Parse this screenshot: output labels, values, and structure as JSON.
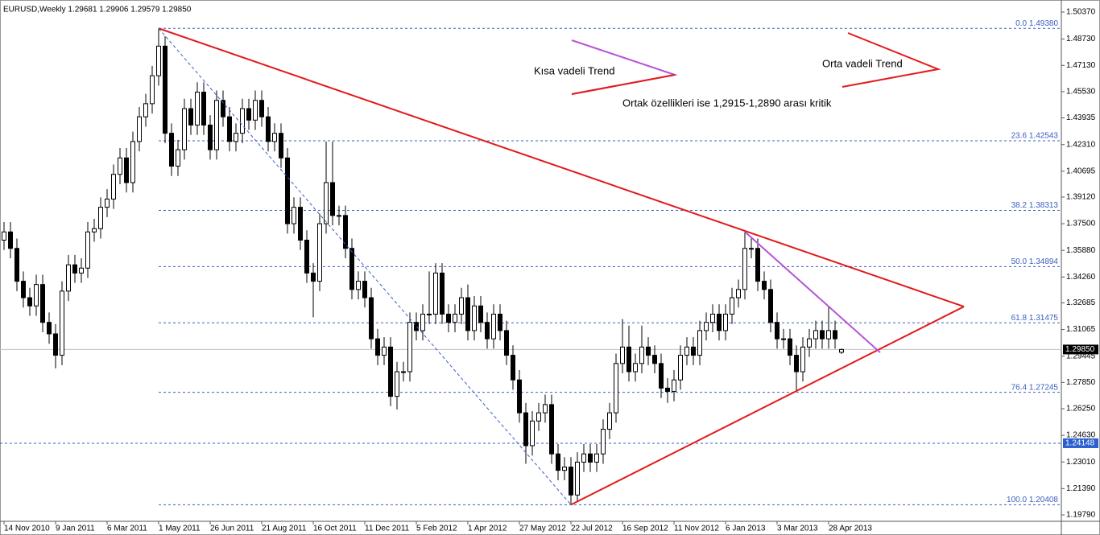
{
  "chart_data": {
    "type": "candlestick",
    "title": "EURUSD,Weekly  1.29681 1.29906 1.29579 1.29850",
    "categories": [
      "14 Nov 2010",
      null,
      null,
      null,
      null,
      null,
      null,
      null,
      "9 Jan 2011",
      null,
      null,
      null,
      null,
      null,
      null,
      null,
      "6 Mar 2011",
      null,
      null,
      null,
      null,
      null,
      null,
      null,
      "1 May 2011",
      null,
      null,
      null,
      null,
      null,
      null,
      null,
      "26 Jun 2011",
      null,
      null,
      null,
      null,
      null,
      null,
      null,
      "21 Aug 2011",
      null,
      null,
      null,
      null,
      null,
      null,
      null,
      "16 Oct 2011",
      null,
      null,
      null,
      null,
      null,
      null,
      null,
      "11 Dec 2011",
      null,
      null,
      null,
      null,
      null,
      null,
      null,
      "5 Feb 2012",
      null,
      null,
      null,
      null,
      null,
      null,
      null,
      "1 Apr 2012",
      null,
      null,
      null,
      null,
      null,
      null,
      null,
      "27 May 2012",
      null,
      null,
      null,
      null,
      null,
      null,
      null,
      "22 Jul 2012",
      null,
      null,
      null,
      null,
      null,
      null,
      null,
      "16 Sep 2012",
      null,
      null,
      null,
      null,
      null,
      null,
      null,
      "11 Nov 2012",
      null,
      null,
      null,
      null,
      null,
      null,
      null,
      "6 Jan 2013",
      null,
      null,
      null,
      null,
      null,
      null,
      null,
      "3 Mar 2013",
      null,
      null,
      null,
      null,
      null,
      null,
      null,
      "28 Apr 2013",
      null,
      null
    ],
    "open": [
      1.365,
      1.37,
      1.36,
      1.34,
      1.33,
      1.325,
      1.338,
      1.315,
      1.308,
      1.295,
      1.334,
      1.35,
      1.345,
      1.348,
      1.37,
      1.372,
      1.385,
      1.39,
      1.405,
      1.415,
      1.4,
      1.425,
      1.44,
      1.448,
      1.465,
      1.483,
      1.43,
      1.41,
      1.42,
      1.445,
      1.435,
      1.455,
      1.435,
      1.42,
      1.45,
      1.44,
      1.425,
      1.43,
      1.445,
      1.438,
      1.45,
      1.44,
      1.425,
      1.43,
      1.415,
      1.375,
      1.385,
      1.365,
      1.345,
      1.34,
      1.375,
      1.4,
      1.38,
      1.38,
      1.36,
      1.335,
      1.34,
      1.33,
      1.305,
      1.295,
      1.3,
      1.27,
      1.285,
      1.285,
      1.315,
      1.31,
      1.32,
      1.32,
      1.345,
      1.32,
      1.315,
      1.32,
      1.33,
      1.31,
      1.325,
      1.315,
      1.305,
      1.32,
      1.31,
      1.295,
      1.28,
      1.26,
      1.24,
      1.255,
      1.26,
      1.265,
      1.235,
      1.225,
      1.227,
      1.21,
      1.23,
      1.235,
      1.23,
      1.235,
      1.25,
      1.26,
      1.29,
      1.3,
      1.285,
      1.29,
      1.3,
      1.295,
      1.29,
      1.275,
      1.273,
      1.28,
      1.295,
      1.3,
      1.295,
      1.31,
      1.315,
      1.32,
      1.31,
      1.32,
      1.33,
      1.335,
      1.36,
      1.36,
      1.34,
      1.335,
      1.315,
      1.305,
      1.305,
      1.295,
      1.285,
      1.3,
      1.305,
      1.31,
      1.305,
      1.31,
      1.29681
    ],
    "high": [
      1.376,
      1.376,
      1.366,
      1.346,
      1.336,
      1.344,
      1.344,
      1.321,
      1.314,
      1.34,
      1.356,
      1.356,
      1.354,
      1.376,
      1.378,
      1.391,
      1.396,
      1.411,
      1.421,
      1.421,
      1.431,
      1.446,
      1.454,
      1.471,
      1.4938,
      1.489,
      1.436,
      1.426,
      1.451,
      1.451,
      1.461,
      1.461,
      1.441,
      1.456,
      1.456,
      1.446,
      1.436,
      1.451,
      1.451,
      1.456,
      1.456,
      1.446,
      1.436,
      1.436,
      1.421,
      1.391,
      1.391,
      1.371,
      1.351,
      1.381,
      1.425,
      1.425,
      1.386,
      1.386,
      1.366,
      1.346,
      1.346,
      1.336,
      1.311,
      1.306,
      1.306,
      1.291,
      1.291,
      1.321,
      1.321,
      1.326,
      1.346,
      1.351,
      1.351,
      1.326,
      1.326,
      1.336,
      1.338,
      1.331,
      1.331,
      1.321,
      1.326,
      1.326,
      1.316,
      1.301,
      1.286,
      1.266,
      1.261,
      1.266,
      1.271,
      1.271,
      1.241,
      1.233,
      1.233,
      1.236,
      1.241,
      1.241,
      1.241,
      1.256,
      1.266,
      1.296,
      1.317,
      1.313,
      1.296,
      1.313,
      1.306,
      1.301,
      1.296,
      1.281,
      1.286,
      1.301,
      1.306,
      1.306,
      1.316,
      1.321,
      1.326,
      1.326,
      1.326,
      1.336,
      1.341,
      1.371,
      1.366,
      1.366,
      1.346,
      1.341,
      1.321,
      1.311,
      1.311,
      1.301,
      1.306,
      1.311,
      1.316,
      1.316,
      1.325,
      1.316,
      1.29906
    ],
    "low": [
      1.359,
      1.354,
      1.334,
      1.324,
      1.319,
      1.319,
      1.309,
      1.302,
      1.287,
      1.289,
      1.328,
      1.339,
      1.339,
      1.342,
      1.364,
      1.366,
      1.379,
      1.384,
      1.399,
      1.394,
      1.394,
      1.419,
      1.434,
      1.442,
      1.459,
      1.424,
      1.404,
      1.404,
      1.414,
      1.429,
      1.429,
      1.429,
      1.414,
      1.414,
      1.434,
      1.419,
      1.419,
      1.424,
      1.432,
      1.432,
      1.434,
      1.419,
      1.419,
      1.409,
      1.369,
      1.369,
      1.359,
      1.339,
      1.318,
      1.334,
      1.369,
      1.374,
      1.374,
      1.354,
      1.329,
      1.329,
      1.324,
      1.299,
      1.289,
      1.289,
      1.264,
      1.262,
      1.279,
      1.279,
      1.304,
      1.304,
      1.314,
      1.314,
      1.314,
      1.309,
      1.309,
      1.314,
      1.304,
      1.304,
      1.309,
      1.299,
      1.299,
      1.304,
      1.289,
      1.274,
      1.254,
      1.229,
      1.234,
      1.249,
      1.254,
      1.229,
      1.219,
      1.219,
      1.2041,
      1.206,
      1.224,
      1.224,
      1.224,
      1.229,
      1.244,
      1.254,
      1.284,
      1.279,
      1.279,
      1.284,
      1.289,
      1.284,
      1.269,
      1.266,
      1.267,
      1.274,
      1.289,
      1.289,
      1.289,
      1.304,
      1.309,
      1.304,
      1.304,
      1.314,
      1.324,
      1.329,
      1.354,
      1.334,
      1.329,
      1.309,
      1.299,
      1.299,
      1.289,
      1.273,
      1.279,
      1.294,
      1.299,
      1.299,
      1.299,
      1.299,
      1.29579
    ],
    "close": [
      1.37,
      1.36,
      1.34,
      1.33,
      1.325,
      1.338,
      1.315,
      1.308,
      1.295,
      1.334,
      1.35,
      1.345,
      1.348,
      1.37,
      1.372,
      1.385,
      1.39,
      1.405,
      1.415,
      1.4,
      1.425,
      1.44,
      1.448,
      1.465,
      1.483,
      1.43,
      1.41,
      1.42,
      1.445,
      1.435,
      1.455,
      1.435,
      1.42,
      1.45,
      1.44,
      1.425,
      1.43,
      1.445,
      1.438,
      1.45,
      1.44,
      1.425,
      1.43,
      1.415,
      1.375,
      1.385,
      1.365,
      1.345,
      1.34,
      1.375,
      1.4,
      1.38,
      1.38,
      1.36,
      1.335,
      1.34,
      1.33,
      1.305,
      1.295,
      1.3,
      1.27,
      1.285,
      1.285,
      1.315,
      1.31,
      1.32,
      1.32,
      1.345,
      1.32,
      1.315,
      1.32,
      1.33,
      1.31,
      1.325,
      1.315,
      1.305,
      1.32,
      1.31,
      1.295,
      1.28,
      1.26,
      1.24,
      1.255,
      1.26,
      1.265,
      1.235,
      1.225,
      1.227,
      1.21,
      1.23,
      1.235,
      1.23,
      1.235,
      1.25,
      1.26,
      1.29,
      1.3,
      1.285,
      1.29,
      1.3,
      1.295,
      1.29,
      1.275,
      1.273,
      1.28,
      1.295,
      1.3,
      1.295,
      1.31,
      1.315,
      1.32,
      1.31,
      1.32,
      1.33,
      1.335,
      1.36,
      1.36,
      1.34,
      1.335,
      1.315,
      1.305,
      1.305,
      1.295,
      1.285,
      1.3,
      1.305,
      1.31,
      1.305,
      1.31,
      1.305,
      1.2985
    ],
    "ylim": [
      1.194,
      1.5086
    ],
    "yticks": [
      {
        "value": 1.5037,
        "label": "1.50370"
      },
      {
        "value": 1.4873,
        "label": "1.48730"
      },
      {
        "value": 1.4713,
        "label": "1.47130"
      },
      {
        "value": 1.4553,
        "label": "1.45530"
      },
      {
        "value": 1.43935,
        "label": "1.43935"
      },
      {
        "value": 1.4231,
        "label": "1.42310"
      },
      {
        "value": 1.40695,
        "label": "1.40695"
      },
      {
        "value": 1.3912,
        "label": "1.39120"
      },
      {
        "value": 1.375,
        "label": "1.37500"
      },
      {
        "value": 1.3588,
        "label": "1.35880"
      },
      {
        "value": 1.3426,
        "label": "1.34260"
      },
      {
        "value": 1.32685,
        "label": "1.32685"
      },
      {
        "value": 1.31065,
        "label": "1.31065"
      },
      {
        "value": 1.29445,
        "label": "1.29445"
      },
      {
        "value": 1.2785,
        "label": "1.27850"
      },
      {
        "value": 1.2625,
        "label": "1.26250"
      },
      {
        "value": 1.2463,
        "label": "1.24630"
      },
      {
        "value": 1.2301,
        "label": "1.23010"
      },
      {
        "value": 1.2139,
        "label": "1.21390"
      },
      {
        "value": 1.1979,
        "label": "1.19790"
      }
    ],
    "fib_levels": [
      {
        "value": 1.4938,
        "label": "0.0 1.49380"
      },
      {
        "value": 1.42543,
        "label": "23.6 1.42543"
      },
      {
        "value": 1.38313,
        "label": "38.2 1.38313"
      },
      {
        "value": 1.34894,
        "label": "50.0 1.34894"
      },
      {
        "value": 1.31475,
        "label": "61.8 1.31475"
      },
      {
        "value": 1.27245,
        "label": "76.4 1.27245"
      },
      {
        "value": 1.20408,
        "label": "100.0 1.20408"
      }
    ],
    "fib_color": "#3a5fc0",
    "hlines": [
      {
        "value": 1.24148,
        "label": "1.24148",
        "color": "#2a5fd0"
      }
    ],
    "last_price": {
      "value": 1.2985,
      "label": "1.29850"
    },
    "trendlines": [
      {
        "x": [
          24,
          149
        ],
        "y": [
          1.4938,
          1.3246
        ],
        "color": "#e31a1a",
        "dashed": false
      },
      {
        "x": [
          88,
          149
        ],
        "y": [
          1.2041,
          1.3246
        ],
        "color": "#e31a1a",
        "dashed": false
      },
      {
        "x": [
          115,
          136
        ],
        "y": [
          1.3701,
          1.2967
        ],
        "color": "#b455d6",
        "dashed": false
      },
      {
        "x": [
          24,
          88
        ],
        "y": [
          1.4938,
          1.2041
        ],
        "color": "#3a5fc0",
        "dashed": true
      }
    ],
    "annotations": [
      "Kısa vadeli Trend",
      "Orta vadeli Trend",
      "Ortak özellikleri ise 1,2915-1,2890 arası kritik"
    ]
  }
}
